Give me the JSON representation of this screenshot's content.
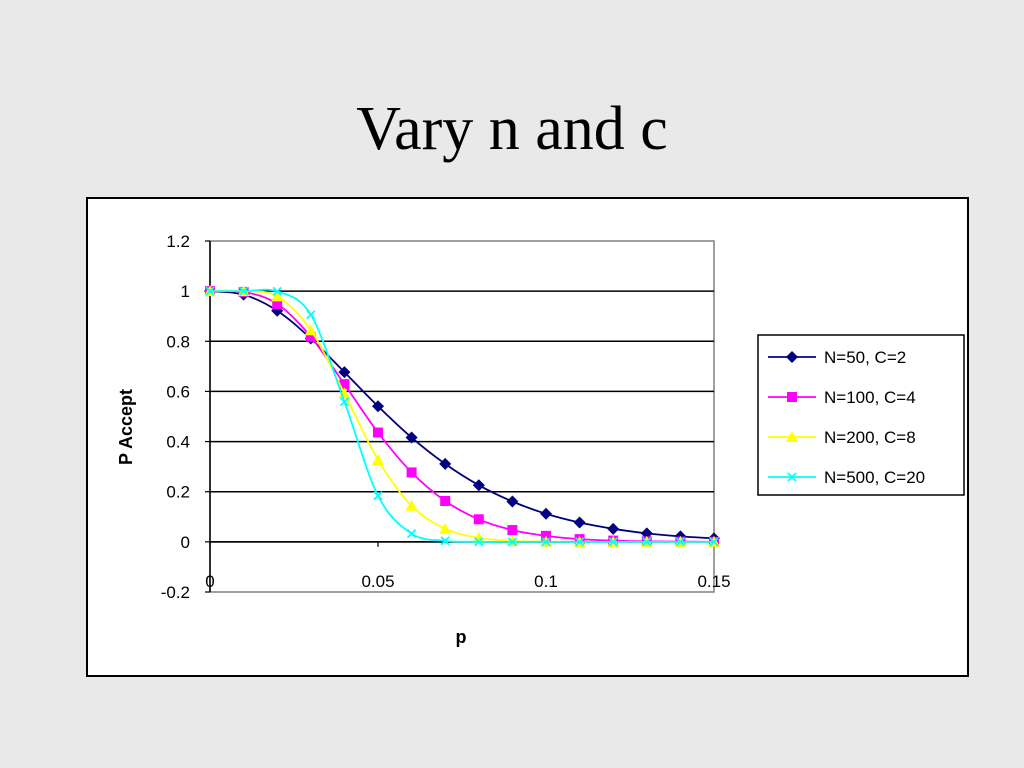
{
  "slide": {
    "title": "Vary n and c"
  },
  "colors": {
    "background": "#e9e9e9",
    "plot_area": "#ffffff",
    "gridline": "#000000",
    "plot_border": "#808080"
  },
  "chart_data": {
    "type": "line",
    "xlabel": "p",
    "ylabel": "P Accept",
    "xlim": [
      0,
      0.15
    ],
    "ylim": [
      -0.2,
      1.2
    ],
    "x_ticks": [
      "0",
      "0.05",
      "0.1",
      "0.15"
    ],
    "y_ticks": [
      "1.2",
      "1",
      "0.8",
      "0.6",
      "0.4",
      "0.2",
      "0",
      "-0.2"
    ],
    "grid": "horizontal",
    "legend_position": "right",
    "x": [
      0,
      0.01,
      0.02,
      0.03,
      0.04,
      0.05,
      0.06,
      0.07,
      0.08,
      0.09,
      0.1,
      0.11,
      0.12,
      0.13,
      0.14,
      0.15
    ],
    "series": [
      {
        "name": "N=50, C=2",
        "color": "#000080",
        "marker": "diamond",
        "values": [
          1.0,
          0.986,
          0.922,
          0.811,
          0.677,
          0.541,
          0.416,
          0.311,
          0.226,
          0.161,
          0.112,
          0.077,
          0.052,
          0.034,
          0.022,
          0.014
        ]
      },
      {
        "name": "N=100, C=4",
        "color": "#ff00ff",
        "marker": "square",
        "values": [
          1.0,
          0.997,
          0.949,
          0.818,
          0.629,
          0.436,
          0.277,
          0.163,
          0.09,
          0.047,
          0.024,
          0.011,
          0.005,
          0.002,
          0.001,
          0.0
        ]
      },
      {
        "name": "N=200, C=8",
        "color": "#ffff00",
        "marker": "triangle",
        "values": [
          1.0,
          1.0,
          0.979,
          0.844,
          0.592,
          0.327,
          0.144,
          0.052,
          0.016,
          0.004,
          0.001,
          0.0,
          0.0,
          0.0,
          0.0,
          0.0
        ]
      },
      {
        "name": "N=500, C=20",
        "color": "#00ffff",
        "marker": "x",
        "values": [
          1.0,
          1.0,
          0.999,
          0.906,
          0.559,
          0.184,
          0.033,
          0.004,
          0.0,
          0.0,
          0.0,
          0.0,
          0.0,
          0.0,
          0.0,
          0.0
        ]
      }
    ]
  }
}
